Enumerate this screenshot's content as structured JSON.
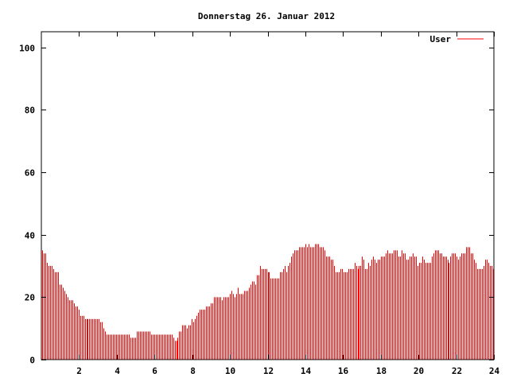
{
  "chart_data": {
    "type": "bar",
    "title": "Donnerstag 26. Januar 2012",
    "xlabel": "",
    "ylabel": "",
    "xlim": [
      0,
      24
    ],
    "ylim": [
      0,
      105
    ],
    "xticks": [
      "2",
      "4",
      "6",
      "8",
      "10",
      "12",
      "14",
      "16",
      "18",
      "20",
      "22",
      "24"
    ],
    "yticks": [
      "0",
      "20",
      "40",
      "60",
      "80",
      "100"
    ],
    "grid": false,
    "legend_position": "top-right",
    "series": [
      {
        "name": "User",
        "color": "#ff0000",
        "values": [
          35,
          34,
          34,
          31,
          30,
          30,
          30,
          29,
          28,
          28,
          28,
          24,
          24,
          23,
          22,
          21,
          20,
          19,
          19,
          19,
          18,
          17,
          17,
          16,
          14,
          14,
          14,
          13,
          13,
          13,
          13,
          13,
          13,
          13,
          13,
          13,
          13,
          12,
          12,
          10,
          9,
          8,
          8,
          8,
          8,
          8,
          8,
          8,
          8,
          8,
          8,
          8,
          8,
          8,
          8,
          8,
          7,
          7,
          7,
          7,
          9,
          9,
          9,
          9,
          9,
          9,
          9,
          9,
          9,
          8,
          8,
          8,
          8,
          8,
          8,
          8,
          8,
          8,
          8,
          8,
          8,
          8,
          8,
          7,
          6,
          6,
          7,
          9,
          9,
          11,
          11,
          11,
          10,
          11,
          11,
          13,
          12,
          13,
          14,
          15,
          16,
          16,
          16,
          16,
          17,
          17,
          17,
          18,
          18,
          20,
          20,
          20,
          20,
          20,
          19,
          20,
          20,
          20,
          20,
          21,
          22,
          21,
          20,
          21,
          23,
          21,
          21,
          21,
          22,
          22,
          22,
          23,
          24,
          25,
          25,
          24,
          27,
          27,
          30,
          29,
          29,
          29,
          29,
          28,
          28,
          26,
          26,
          26,
          26,
          26,
          26,
          28,
          28,
          29,
          30,
          28,
          30,
          31,
          33,
          34,
          35,
          35,
          35,
          36,
          36,
          36,
          36,
          37,
          36,
          37,
          36,
          36,
          36,
          37,
          37,
          37,
          36,
          36,
          36,
          35,
          33,
          33,
          33,
          32,
          32,
          30,
          28,
          28,
          28,
          29,
          29,
          28,
          28,
          28,
          29,
          29,
          29,
          29,
          31,
          30,
          29,
          30,
          30,
          33,
          32,
          29,
          29,
          31,
          30,
          32,
          33,
          32,
          31,
          32,
          32,
          33,
          33,
          33,
          34,
          35,
          34,
          34,
          34,
          35,
          35,
          35,
          33,
          33,
          35,
          34,
          34,
          32,
          32,
          33,
          33,
          34,
          33,
          33,
          30,
          31,
          31,
          33,
          32,
          31,
          31,
          31,
          31,
          33,
          34,
          35,
          35,
          35,
          34,
          34,
          33,
          33,
          33,
          32,
          31,
          33,
          34,
          34,
          34,
          33,
          32,
          33,
          34,
          34,
          34,
          36,
          36,
          36,
          34,
          34,
          32,
          31,
          29,
          29,
          29,
          29,
          30,
          32,
          32,
          31,
          30,
          30,
          29
        ]
      }
    ]
  }
}
